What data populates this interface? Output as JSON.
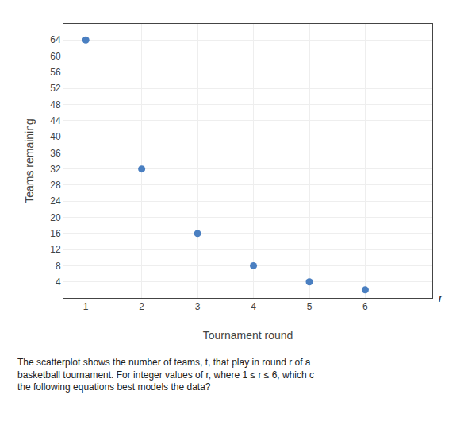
{
  "chart_data": {
    "type": "scatter",
    "x": [
      1,
      2,
      3,
      4,
      5,
      6
    ],
    "values": [
      64,
      32,
      16,
      8,
      4,
      2
    ],
    "color": "#4A7FC1",
    "xlabel": "Tournament round",
    "ylabel": "Teams remaining",
    "xlim": [
      0.6,
      7.2
    ],
    "ylim": [
      0,
      68
    ],
    "xticks": [
      1,
      2,
      3,
      4,
      5,
      6
    ],
    "yticks": [
      4,
      8,
      12,
      16,
      20,
      24,
      28,
      32,
      36,
      40,
      44,
      48,
      52,
      56,
      60,
      64
    ],
    "grid": true,
    "annotations": [
      "r",
      "The scatterplot shows the number of teams, t, that play in round r of a\nbasketball tournament. For integer values of r, where 1 ≤ r ≤ 6, which c\nthe following equations best models the data?"
    ]
  }
}
